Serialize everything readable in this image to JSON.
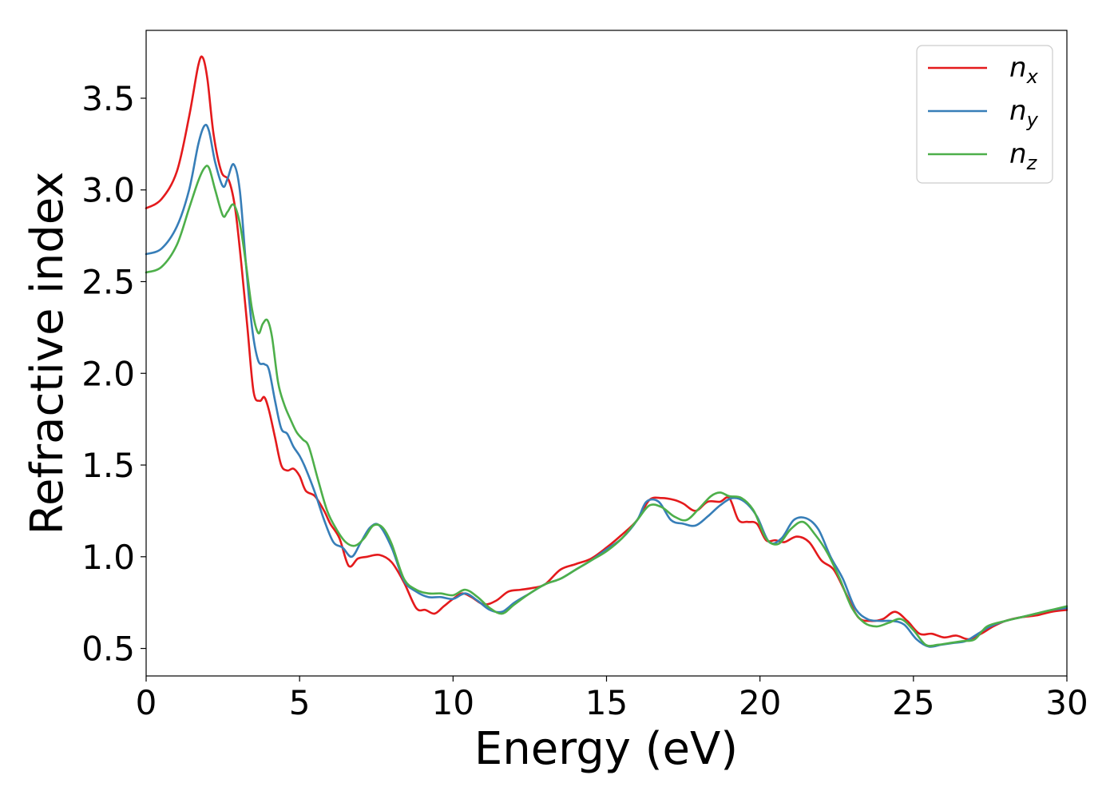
{
  "chart_data": {
    "type": "line",
    "title": "",
    "xlabel": "Energy (eV)",
    "ylabel": "Refractive index",
    "xlim": [
      0,
      30
    ],
    "ylim": [
      0.35,
      3.87
    ],
    "xticks": [
      0,
      5,
      10,
      15,
      20,
      25,
      30
    ],
    "xtick_labels": [
      "0",
      "5",
      "10",
      "15",
      "20",
      "25",
      "30"
    ],
    "yticks": [
      0.5,
      1.0,
      1.5,
      2.0,
      2.5,
      3.0,
      3.5
    ],
    "ytick_labels": [
      "0.5",
      "1.0",
      "1.5",
      "2.0",
      "2.5",
      "3.0",
      "3.5"
    ],
    "grid": false,
    "legend_position": "top-right",
    "series": [
      {
        "name": "n",
        "subscript": "x",
        "color": "#e41a1c",
        "x": [
          0,
          0.5,
          1.0,
          1.4,
          1.7,
          1.85,
          2.0,
          2.2,
          2.45,
          2.7,
          2.9,
          3.1,
          3.3,
          3.5,
          3.7,
          3.85,
          4.0,
          4.2,
          4.4,
          4.6,
          4.8,
          5.0,
          5.2,
          5.5,
          5.8,
          6.0,
          6.3,
          6.6,
          6.9,
          7.2,
          7.6,
          8.0,
          8.4,
          8.8,
          9.1,
          9.4,
          9.7,
          10.0,
          10.3,
          10.6,
          11.0,
          11.4,
          11.8,
          12.2,
          12.6,
          13.0,
          13.5,
          14.0,
          14.5,
          15.0,
          15.5,
          16.0,
          16.4,
          16.8,
          17.2,
          17.5,
          17.9,
          18.3,
          18.7,
          19.0,
          19.3,
          19.6,
          19.9,
          20.2,
          20.5,
          20.8,
          21.2,
          21.6,
          22.0,
          22.4,
          22.8,
          23.2,
          23.6,
          24.0,
          24.4,
          24.8,
          25.2,
          25.6,
          26.0,
          26.4,
          26.8,
          27.2,
          27.6,
          28.0,
          28.5,
          29.0,
          29.5,
          30.0
        ],
        "y": [
          2.9,
          2.95,
          3.1,
          3.4,
          3.68,
          3.72,
          3.6,
          3.3,
          3.1,
          3.05,
          2.9,
          2.6,
          2.25,
          1.9,
          1.85,
          1.87,
          1.8,
          1.65,
          1.5,
          1.47,
          1.48,
          1.44,
          1.36,
          1.33,
          1.25,
          1.18,
          1.1,
          0.95,
          0.99,
          1.0,
          1.01,
          0.97,
          0.86,
          0.72,
          0.71,
          0.69,
          0.73,
          0.77,
          0.8,
          0.78,
          0.74,
          0.76,
          0.81,
          0.82,
          0.83,
          0.85,
          0.93,
          0.96,
          0.99,
          1.05,
          1.12,
          1.2,
          1.31,
          1.32,
          1.31,
          1.29,
          1.25,
          1.3,
          1.3,
          1.32,
          1.2,
          1.19,
          1.18,
          1.09,
          1.09,
          1.08,
          1.11,
          1.08,
          0.98,
          0.93,
          0.8,
          0.67,
          0.65,
          0.66,
          0.7,
          0.65,
          0.58,
          0.58,
          0.56,
          0.57,
          0.55,
          0.58,
          0.62,
          0.65,
          0.67,
          0.68,
          0.7,
          0.71
        ]
      },
      {
        "name": "n",
        "subscript": "y",
        "color": "#377eb8",
        "x": [
          0,
          0.5,
          1.0,
          1.4,
          1.7,
          1.9,
          2.05,
          2.25,
          2.5,
          2.65,
          2.85,
          3.05,
          3.25,
          3.45,
          3.65,
          3.85,
          4.0,
          4.2,
          4.4,
          4.6,
          4.8,
          5.0,
          5.2,
          5.5,
          5.8,
          6.1,
          6.4,
          6.7,
          7.0,
          7.3,
          7.6,
          8.0,
          8.4,
          8.8,
          9.2,
          9.6,
          10.0,
          10.4,
          10.8,
          11.2,
          11.6,
          12.0,
          12.5,
          13.0,
          13.5,
          14.0,
          14.5,
          15.0,
          15.5,
          16.0,
          16.3,
          16.7,
          17.1,
          17.5,
          17.9,
          18.3,
          18.7,
          19.1,
          19.5,
          19.9,
          20.3,
          20.7,
          21.1,
          21.5,
          21.9,
          22.3,
          22.7,
          23.1,
          23.5,
          23.9,
          24.3,
          24.7,
          25.1,
          25.5,
          25.9,
          26.3,
          26.7,
          27.1,
          27.5,
          28.0,
          28.5,
          29.0,
          29.5,
          30.0
        ],
        "y": [
          2.65,
          2.68,
          2.8,
          3.0,
          3.25,
          3.35,
          3.32,
          3.15,
          3.02,
          3.06,
          3.14,
          3.0,
          2.6,
          2.25,
          2.07,
          2.05,
          2.02,
          1.85,
          1.7,
          1.67,
          1.6,
          1.55,
          1.48,
          1.35,
          1.2,
          1.08,
          1.05,
          1.0,
          1.08,
          1.16,
          1.17,
          1.05,
          0.87,
          0.81,
          0.78,
          0.78,
          0.77,
          0.8,
          0.76,
          0.71,
          0.7,
          0.75,
          0.8,
          0.85,
          0.88,
          0.93,
          0.98,
          1.04,
          1.1,
          1.2,
          1.3,
          1.3,
          1.2,
          1.18,
          1.17,
          1.22,
          1.28,
          1.32,
          1.3,
          1.22,
          1.08,
          1.1,
          1.2,
          1.21,
          1.15,
          1.0,
          0.88,
          0.72,
          0.66,
          0.65,
          0.65,
          0.63,
          0.55,
          0.51,
          0.52,
          0.53,
          0.54,
          0.58,
          0.62,
          0.65,
          0.67,
          0.69,
          0.71,
          0.72
        ]
      },
      {
        "name": "n",
        "subscript": "z",
        "color": "#4daf4a",
        "x": [
          0,
          0.5,
          1.0,
          1.4,
          1.7,
          1.9,
          2.05,
          2.25,
          2.5,
          2.65,
          2.85,
          3.05,
          3.25,
          3.45,
          3.65,
          3.8,
          3.95,
          4.1,
          4.3,
          4.5,
          4.7,
          4.9,
          5.1,
          5.3,
          5.6,
          5.9,
          6.2,
          6.5,
          6.8,
          7.1,
          7.4,
          7.7,
          8.0,
          8.4,
          8.8,
          9.2,
          9.6,
          10.0,
          10.4,
          10.8,
          11.2,
          11.6,
          12.0,
          12.5,
          13.0,
          13.5,
          14.0,
          14.5,
          15.0,
          15.5,
          16.0,
          16.4,
          16.8,
          17.2,
          17.6,
          18.0,
          18.4,
          18.7,
          19.0,
          19.4,
          19.8,
          20.2,
          20.6,
          21.0,
          21.4,
          21.8,
          22.2,
          22.6,
          23.0,
          23.4,
          23.8,
          24.2,
          24.6,
          25.0,
          25.4,
          25.8,
          26.2,
          26.6,
          27.0,
          27.4,
          28.0,
          28.5,
          29.0,
          29.5,
          30.0
        ],
        "y": [
          2.55,
          2.58,
          2.7,
          2.9,
          3.05,
          3.12,
          3.12,
          3.0,
          2.86,
          2.88,
          2.92,
          2.82,
          2.6,
          2.35,
          2.22,
          2.27,
          2.29,
          2.2,
          1.95,
          1.83,
          1.75,
          1.68,
          1.64,
          1.6,
          1.42,
          1.25,
          1.15,
          1.08,
          1.06,
          1.1,
          1.17,
          1.16,
          1.07,
          0.88,
          0.82,
          0.8,
          0.8,
          0.79,
          0.82,
          0.78,
          0.72,
          0.69,
          0.74,
          0.8,
          0.85,
          0.88,
          0.93,
          0.98,
          1.03,
          1.1,
          1.2,
          1.28,
          1.27,
          1.22,
          1.2,
          1.26,
          1.33,
          1.35,
          1.33,
          1.32,
          1.25,
          1.1,
          1.07,
          1.15,
          1.19,
          1.12,
          1.02,
          0.88,
          0.72,
          0.64,
          0.62,
          0.64,
          0.66,
          0.6,
          0.52,
          0.52,
          0.53,
          0.54,
          0.55,
          0.62,
          0.65,
          0.67,
          0.69,
          0.71,
          0.73
        ]
      }
    ]
  }
}
